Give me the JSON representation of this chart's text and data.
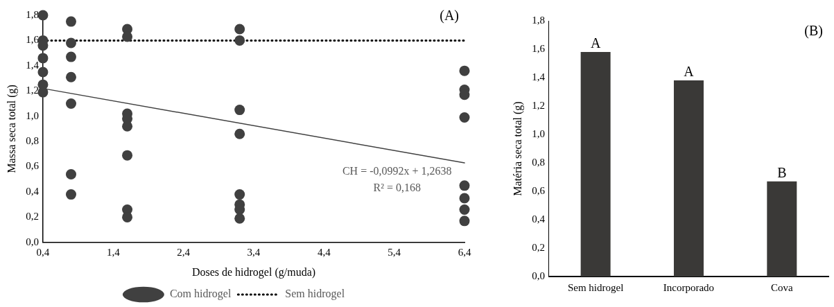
{
  "chart_data": [
    {
      "type": "scatter",
      "title": "(A)",
      "xlabel": "Doses de hidrogel (g/muda)",
      "ylabel": "Massa seca total (g)",
      "legend": "bottom",
      "xlim": [
        0.4,
        6.4
      ],
      "xticks": [
        {
          "value": 0.4,
          "label": "0,4"
        },
        {
          "value": 1.4,
          "label": "1,4"
        },
        {
          "value": 2.4,
          "label": "2,4"
        },
        {
          "value": 3.4,
          "label": "3,4"
        },
        {
          "value": 4.4,
          "label": "4,4"
        },
        {
          "value": 5.4,
          "label": "5,4"
        },
        {
          "value": 6.4,
          "label": "6,4"
        }
      ],
      "ylim": [
        0,
        1.8
      ],
      "yticks": [
        {
          "value": 0,
          "label": "0,0"
        },
        {
          "value": 0.2,
          "label": "0,2"
        },
        {
          "value": 0.4,
          "label": "0,4"
        },
        {
          "value": 0.6,
          "label": "0,6"
        },
        {
          "value": 0.8,
          "label": "0,8"
        },
        {
          "value": 1.0,
          "label": "1,0"
        },
        {
          "value": 1.2,
          "label": "1,2"
        },
        {
          "value": 1.4,
          "label": "1,4"
        },
        {
          "value": 1.6,
          "label": "1,6"
        },
        {
          "value": 1.8,
          "label": "1,8"
        }
      ],
      "annotations": [
        "CH = -0,0992x + 1,2638",
        "R² = 0,168"
      ],
      "series": [
        {
          "name": "Com hidrogel",
          "type": "scatter",
          "marker": "circle",
          "color": "#404040",
          "x": [
            0.4,
            0.4,
            0.4,
            0.4,
            0.4,
            0.4,
            0.4,
            0.8,
            0.8,
            0.8,
            0.8,
            0.8,
            0.8,
            0.8,
            1.6,
            1.6,
            1.6,
            1.6,
            1.6,
            1.6,
            1.6,
            1.6,
            3.2,
            3.2,
            3.2,
            3.2,
            3.2,
            3.2,
            3.2,
            3.2,
            6.4,
            6.4,
            6.4,
            6.4,
            6.4,
            6.4,
            6.4,
            6.4
          ],
          "values": [
            1.8,
            1.6,
            1.56,
            1.46,
            1.35,
            1.25,
            1.19,
            1.75,
            1.58,
            1.47,
            1.31,
            1.1,
            0.54,
            0.38,
            1.69,
            1.63,
            1.02,
            0.98,
            0.92,
            0.69,
            0.26,
            0.2,
            1.69,
            1.6,
            1.05,
            0.86,
            0.38,
            0.3,
            0.26,
            0.19,
            1.36,
            1.21,
            1.17,
            0.99,
            0.45,
            0.35,
            0.26,
            0.17
          ]
        },
        {
          "name": "Sem hidrogel",
          "type": "line",
          "line_style": "dotted",
          "color": "#000000",
          "x": [
            0.4,
            6.4
          ],
          "values": [
            1.6,
            1.6
          ]
        },
        {
          "type": "line",
          "line_style": "solid",
          "color": "#404040",
          "x": [
            0.4,
            6.4
          ],
          "values": [
            1.22,
            0.63
          ]
        }
      ]
    },
    {
      "type": "bar",
      "title": "(B)",
      "ylabel": "Matéria seca total (g)",
      "categories": [
        "Sem hidrogel",
        "Incorporado",
        "Cova"
      ],
      "values": [
        1.58,
        1.38,
        0.67
      ],
      "color": "#3a3937",
      "value_labels": [
        "A",
        "A",
        "B"
      ],
      "ylim": [
        0,
        1.8
      ],
      "yticks": [
        {
          "value": 0,
          "label": "0,0"
        },
        {
          "value": 0.2,
          "label": "0,2"
        },
        {
          "value": 0.4,
          "label": "0,4"
        },
        {
          "value": 0.6,
          "label": "0,6"
        },
        {
          "value": 0.8,
          "label": "0,8"
        },
        {
          "value": 1.0,
          "label": "1,0"
        },
        {
          "value": 1.2,
          "label": "1,2"
        },
        {
          "value": 1.4,
          "label": "1,4"
        },
        {
          "value": 1.6,
          "label": "1,6"
        },
        {
          "value": 1.8,
          "label": "1,8"
        }
      ]
    }
  ]
}
